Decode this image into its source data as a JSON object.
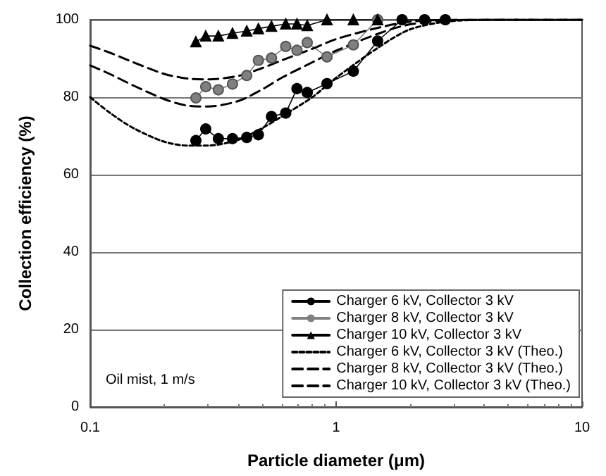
{
  "chart_data": {
    "type": "line",
    "xlabel": "Particle diameter (μm)",
    "ylabel": "Collection efficiency (%)",
    "log": "x",
    "xlim": [
      0.1,
      10
    ],
    "xticks": [
      0.1,
      1,
      10
    ],
    "ylim": [
      0,
      100
    ],
    "yticks": [
      0,
      20,
      40,
      60,
      80,
      100
    ],
    "grid": "y",
    "legend": "bottom right",
    "annotations": [
      "Oil mist, 1 m/s"
    ],
    "series": [
      {
        "name": "Charger 6 kV, Collector 3 kV",
        "color": "#000000",
        "marker": "circle",
        "line_style": "solid",
        "x": [
          0.269,
          0.295,
          0.332,
          0.379,
          0.433,
          0.483,
          0.546,
          0.624,
          0.693,
          0.763,
          0.918,
          1.175,
          1.475,
          1.855,
          2.29,
          2.78
        ],
        "values": [
          68.8,
          71.8,
          69.3,
          69.3,
          69.6,
          70.3,
          75.0,
          75.9,
          82.2,
          81.2,
          83.5,
          86.7,
          94.5,
          100,
          100,
          100
        ]
      },
      {
        "name": "Charger 8 kV, Collector 3 kV",
        "color": "#808080",
        "marker": "circle",
        "line_style": "solid",
        "x": [
          0.269,
          0.295,
          0.332,
          0.379,
          0.433,
          0.483,
          0.546,
          0.624,
          0.693,
          0.763,
          0.918,
          1.175,
          1.475
        ],
        "values": [
          79.8,
          82.7,
          81.9,
          83.4,
          85.6,
          89.5,
          90.1,
          93.1,
          92.1,
          94.1,
          90.4,
          93.5,
          100
        ]
      },
      {
        "name": "Charger 10 kV, Collector 3 kV",
        "color": "#000000",
        "marker": "triangle",
        "line_style": "solid",
        "x": [
          0.269,
          0.295,
          0.332,
          0.379,
          0.433,
          0.483,
          0.546,
          0.624,
          0.693,
          0.763,
          0.918,
          1.175,
          1.475
        ],
        "values": [
          94.3,
          95.8,
          95.8,
          96.5,
          97.1,
          97.7,
          98.3,
          98.9,
          98.9,
          98.5,
          100,
          100,
          100
        ]
      },
      {
        "name": "Charger 6 kV, Collector 3 kV (Theo.)",
        "color": "#000000",
        "marker": "none",
        "line_style": "dotted",
        "x": [
          0.1,
          0.12,
          0.15,
          0.2,
          0.25,
          0.3,
          0.4,
          0.5,
          0.6,
          0.8,
          1,
          1.5,
          2,
          3,
          5,
          10
        ],
        "values": [
          80,
          76,
          72,
          68.5,
          67.5,
          67.5,
          69,
          72,
          75,
          80,
          85,
          93,
          97.5,
          99.7,
          100,
          100
        ]
      },
      {
        "name": "Charger 8 kV, Collector 3 kV (Theo.)",
        "color": "#000000",
        "marker": "none",
        "line_style": "dashed",
        "x": [
          0.1,
          0.12,
          0.15,
          0.2,
          0.25,
          0.3,
          0.4,
          0.5,
          0.6,
          0.8,
          1,
          1.5,
          2,
          3,
          5,
          10
        ],
        "values": [
          88.2,
          86,
          83,
          79.5,
          77.8,
          77.6,
          79,
          82,
          85,
          89,
          92,
          96.5,
          98.8,
          99.9,
          100,
          100
        ]
      },
      {
        "name": "Charger 10 kV, Collector 3 kV (Theo.)",
        "color": "#000000",
        "marker": "none",
        "line_style": "dashed",
        "x": [
          0.1,
          0.12,
          0.15,
          0.2,
          0.25,
          0.3,
          0.4,
          0.5,
          0.6,
          0.8,
          1,
          1.5,
          2,
          3,
          5,
          10
        ],
        "values": [
          93.3,
          91.5,
          89,
          86,
          84.8,
          84.6,
          85.5,
          87.5,
          89.5,
          92.5,
          95,
          98,
          99.5,
          100,
          100,
          100
        ]
      }
    ]
  }
}
